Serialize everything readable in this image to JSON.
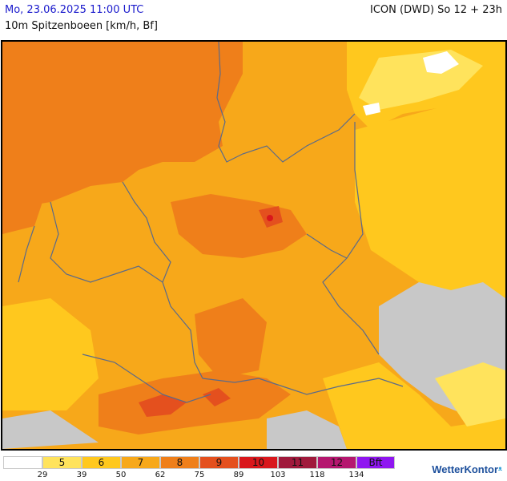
{
  "header": {
    "date_label": "Mo, 23.06.2025 11:00 UTC",
    "model_label": "ICON (DWD) So 12 + 23h",
    "subtitle": "10m Spitzenboeen [km/h, Bf]"
  },
  "legend": {
    "cells": [
      {
        "label": "",
        "color": "#ffffff"
      },
      {
        "label": "5",
        "color": "#ffe35c"
      },
      {
        "label": "6",
        "color": "#ffc81e"
      },
      {
        "label": "7",
        "color": "#f7a81a"
      },
      {
        "label": "8",
        "color": "#ef7f1a"
      },
      {
        "label": "9",
        "color": "#e4501e"
      },
      {
        "label": "10",
        "color": "#d9171c"
      },
      {
        "label": "11",
        "color": "#a01a3c"
      },
      {
        "label": "12",
        "color": "#b5176f"
      },
      {
        "label": "Bft",
        "color": "#8f16f0"
      }
    ],
    "ticks": [
      "29",
      "39",
      "50",
      "62",
      "75",
      "89",
      "103",
      "118",
      "134"
    ]
  },
  "map": {
    "colors": {
      "sea": "#ef7f1a",
      "land_base": "#f7a81a",
      "light": "#ffc81e",
      "lighter": "#ffe35c",
      "strong": "#e4501e",
      "red": "#d9171c",
      "terrain_gray": "#c8c8c8",
      "white": "#ffffff",
      "border_line": "#5a6a8a"
    }
  },
  "branding": {
    "name": "WetterKontor"
  }
}
